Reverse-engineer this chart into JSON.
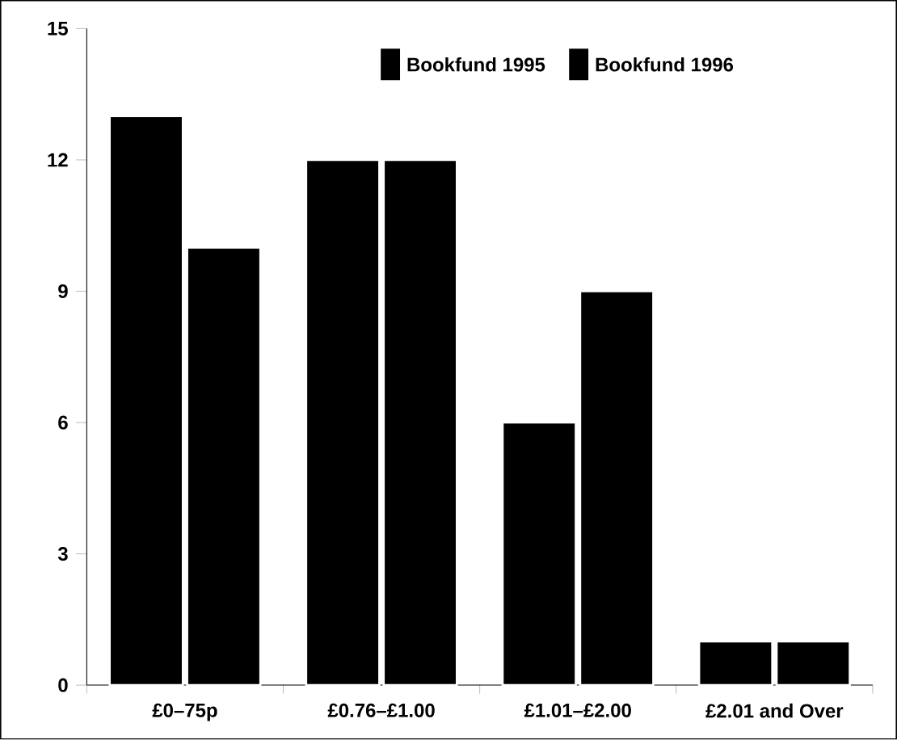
{
  "chart_data": {
    "type": "bar",
    "categories": [
      "£0–75p",
      "£0.76–£1.00",
      "£1.01–£2.00",
      "£2.01 and Over"
    ],
    "series": [
      {
        "name": "Bookfund 1995",
        "color": "#000000",
        "values": [
          13,
          12,
          6,
          1
        ]
      },
      {
        "name": "Bookfund 1996",
        "color": "#000000",
        "values": [
          10,
          12,
          9,
          1
        ]
      }
    ],
    "ylim": [
      0,
      15
    ],
    "yticks": [
      0,
      3,
      6,
      9,
      12,
      15
    ],
    "grid": false,
    "legend": "top"
  }
}
